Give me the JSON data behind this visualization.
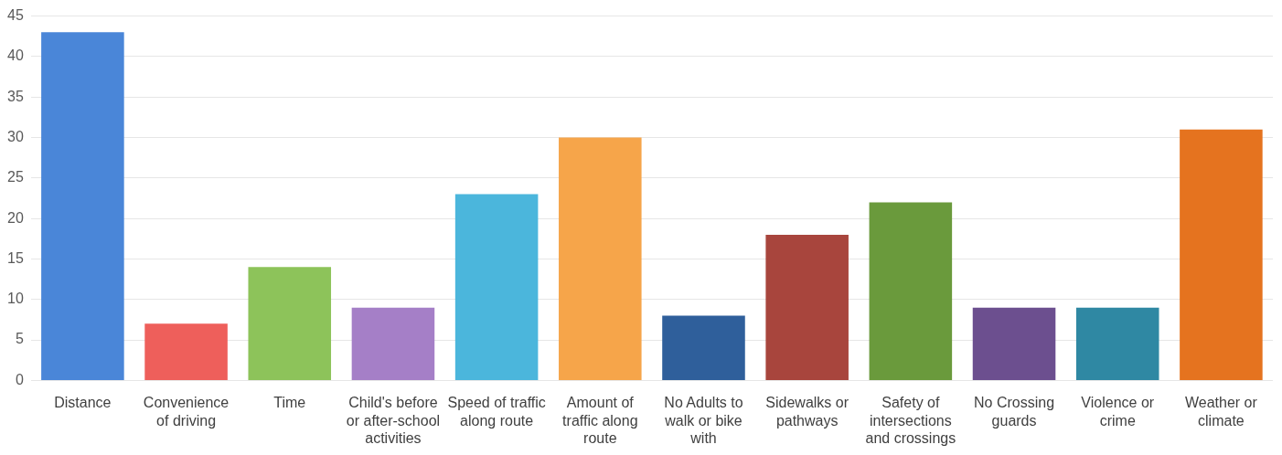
{
  "chart_data": {
    "type": "bar",
    "categories": [
      "Distance",
      "Convenience of driving",
      "Time",
      "Child's before or after-school activities",
      "Speed of traffic along route",
      "Amount of traffic along route",
      "No Adults to walk or bike with",
      "Sidewalks or pathways",
      "Safety of intersections and crossings",
      "No Crossing guards",
      "Violence or crime",
      "Weather or climate"
    ],
    "values": [
      43,
      7,
      14,
      9,
      23,
      30,
      8,
      18,
      22,
      9,
      9,
      31
    ],
    "colors": [
      "#4a86d8",
      "#ee5f5b",
      "#8dc35a",
      "#a57fc7",
      "#4bb6dc",
      "#f6a54a",
      "#2f5f9b",
      "#a8453d",
      "#6a9a3c",
      "#6c4f8f",
      "#2f88a3",
      "#e5731f"
    ],
    "ylim": [
      0,
      45
    ],
    "yticks": [
      0,
      5,
      10,
      15,
      20,
      25,
      30,
      35,
      40,
      45
    ],
    "grid": "y",
    "legend": false
  }
}
